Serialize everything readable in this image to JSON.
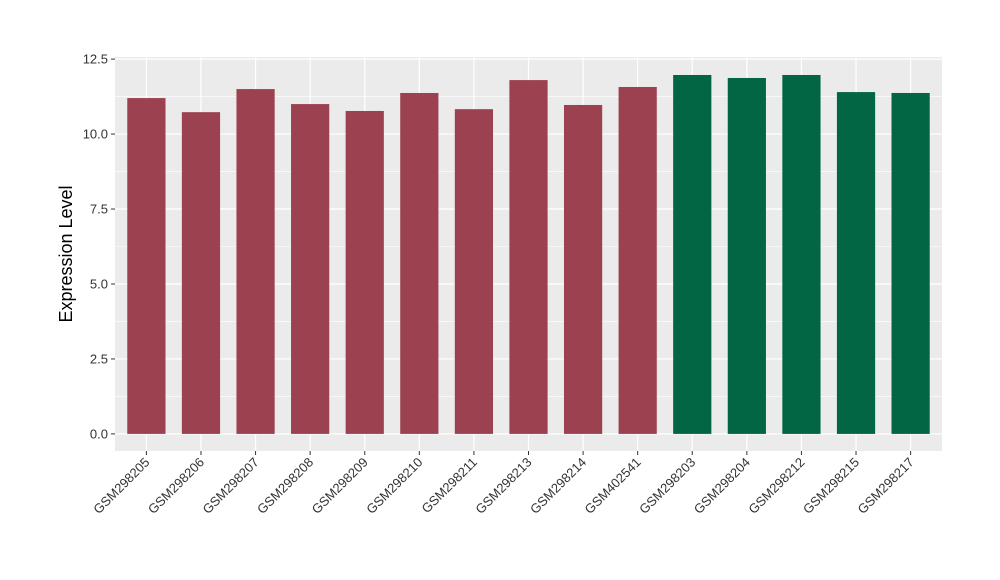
{
  "chart_data": {
    "type": "bar",
    "title": "",
    "xlabel": "",
    "ylabel": "Expression Level",
    "ylim": [
      -0.57,
      12.57
    ],
    "yticks": [
      "0.0",
      "2.5",
      "5.0",
      "7.5",
      "10.0",
      "12.5"
    ],
    "ytick_values": [
      0,
      2.5,
      5,
      7.5,
      10,
      12.5
    ],
    "grid": true,
    "legend": "none",
    "categories": [
      "GSM298205",
      "GSM298206",
      "GSM298207",
      "GSM298208",
      "GSM298209",
      "GSM298210",
      "GSM298211",
      "GSM298213",
      "GSM298214",
      "GSM402541",
      "GSM298203",
      "GSM298204",
      "GSM298212",
      "GSM298215",
      "GSM298217"
    ],
    "values": [
      11.2,
      10.73,
      11.5,
      11.0,
      10.77,
      11.37,
      10.83,
      11.8,
      10.97,
      11.57,
      11.97,
      11.87,
      11.97,
      11.4,
      11.37
    ],
    "groups": [
      0,
      0,
      0,
      0,
      0,
      0,
      0,
      0,
      0,
      0,
      1,
      1,
      1,
      1,
      1
    ],
    "colors": [
      "#9B4150",
      "#026644"
    ]
  }
}
